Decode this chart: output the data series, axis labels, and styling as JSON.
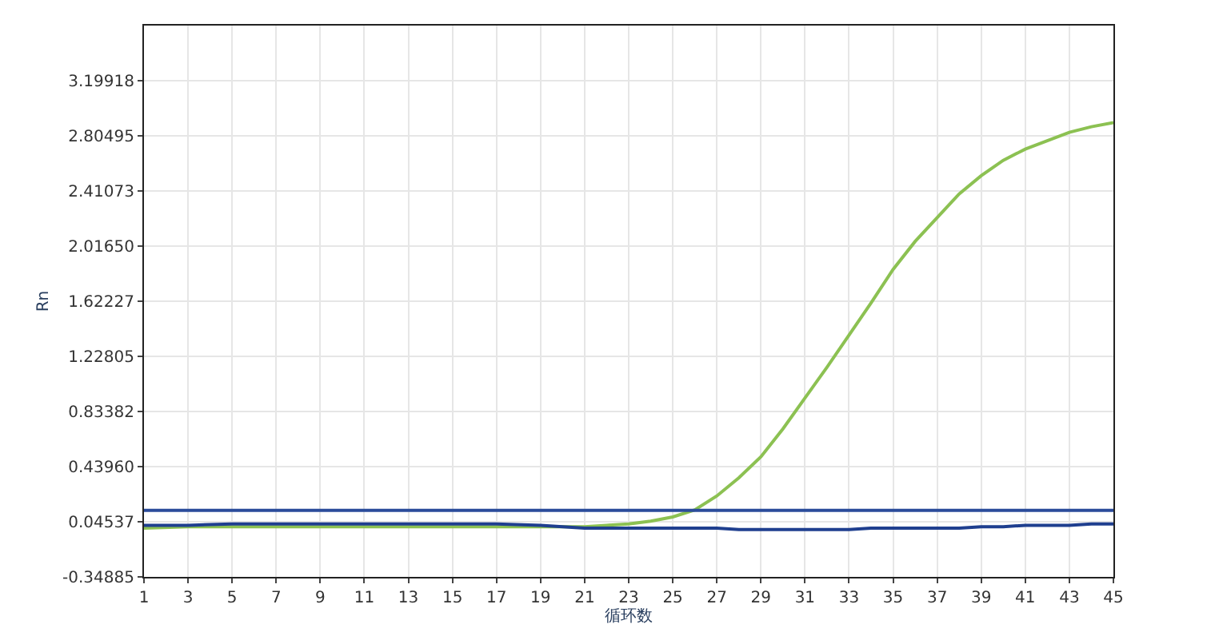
{
  "chart_data": {
    "type": "line",
    "xlabel": "循环数",
    "ylabel": "Rn",
    "x": [
      1,
      3,
      5,
      7,
      9,
      11,
      13,
      15,
      17,
      19,
      20,
      21,
      22,
      23,
      24,
      25,
      26,
      27,
      28,
      29,
      30,
      31,
      32,
      33,
      34,
      35,
      36,
      37,
      38,
      39,
      40,
      41,
      42,
      43,
      44,
      45
    ],
    "series": [
      {
        "color": "#8cc152",
        "values": [
          0.0,
          0.01,
          0.01,
          0.01,
          0.01,
          0.01,
          0.01,
          0.01,
          0.01,
          0.01,
          0.01,
          0.01,
          0.02,
          0.03,
          0.05,
          0.08,
          0.13,
          0.23,
          0.36,
          0.51,
          0.71,
          0.93,
          1.15,
          1.38,
          1.61,
          1.85,
          2.05,
          2.22,
          2.39,
          2.52,
          2.63,
          2.71,
          2.77,
          2.83,
          2.87,
          2.9
        ]
      },
      {
        "color": "#1f3f8f",
        "values": [
          0.02,
          0.02,
          0.03,
          0.03,
          0.03,
          0.03,
          0.03,
          0.03,
          0.03,
          0.02,
          0.01,
          0.0,
          0.0,
          0.0,
          0.0,
          0.0,
          0.0,
          0.0,
          -0.01,
          -0.01,
          -0.01,
          -0.01,
          -0.01,
          -0.01,
          0.0,
          0.0,
          0.0,
          0.0,
          0.0,
          0.01,
          0.01,
          0.02,
          0.02,
          0.02,
          0.03,
          0.03
        ]
      }
    ],
    "ref_lines": [
      {
        "axis": "y",
        "value": 0.127,
        "color": "#2b4c9b"
      }
    ],
    "xlim": [
      1,
      45
    ],
    "xticks": [
      1,
      3,
      5,
      7,
      9,
      11,
      13,
      15,
      17,
      19,
      21,
      23,
      25,
      27,
      29,
      31,
      33,
      35,
      37,
      39,
      41,
      43,
      45
    ],
    "ylim": [
      -0.34885,
      3.59341
    ],
    "yticks": [
      {
        "value": -0.34885,
        "label": "-0.34885"
      },
      {
        "value": 0.04537,
        "label": "0.04537"
      },
      {
        "value": 0.4396,
        "label": "0.43960"
      },
      {
        "value": 0.83382,
        "label": "0.83382"
      },
      {
        "value": 1.22805,
        "label": "1.22805"
      },
      {
        "value": 1.62227,
        "label": "1.62227"
      },
      {
        "value": 2.0165,
        "label": "2.01650"
      },
      {
        "value": 2.41073,
        "label": "2.41073"
      },
      {
        "value": 2.80495,
        "label": "2.80495"
      },
      {
        "value": 3.19918,
        "label": "3.19918"
      }
    ],
    "grid": true
  }
}
